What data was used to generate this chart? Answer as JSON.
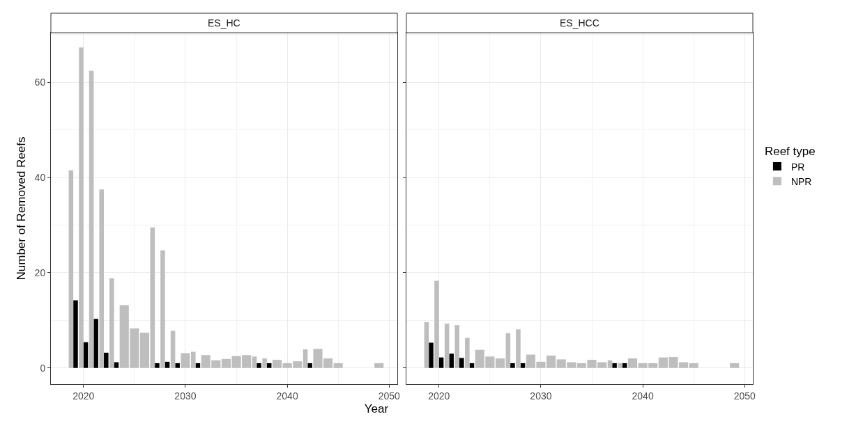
{
  "chart_data": [
    {
      "type": "bar",
      "title": "ES_HC",
      "xlabel": "Year",
      "ylabel": "Number of Removed Reefs",
      "x": [
        2019,
        2020,
        2021,
        2022,
        2023,
        2024,
        2025,
        2026,
        2027,
        2028,
        2029,
        2030,
        2031,
        2032,
        2033,
        2034,
        2035,
        2036,
        2037,
        2038,
        2039,
        2040,
        2041,
        2042,
        2043,
        2044,
        2045,
        2046,
        2047,
        2048,
        2049
      ],
      "series": [
        {
          "color": "#000000",
          "values": [
            14.2,
            5.4,
            10.3,
            3.2,
            1.2,
            null,
            null,
            null,
            1.0,
            1.3,
            1.0,
            null,
            1.0,
            null,
            null,
            null,
            null,
            null,
            1.0,
            1.0,
            null,
            null,
            null,
            1.0,
            null,
            null,
            null,
            null,
            null,
            null,
            null
          ]
        },
        {
          "color": "#bebebe",
          "values": [
            41.5,
            67.3,
            62.4,
            37.5,
            18.8,
            13.2,
            8.3,
            7.4,
            29.5,
            24.7,
            7.8,
            3.1,
            3.4,
            2.7,
            1.6,
            1.9,
            2.5,
            2.7,
            2.4,
            2.0,
            1.7,
            1.0,
            1.4,
            3.9,
            4.0,
            2.0,
            1.0,
            null,
            null,
            null,
            1.0
          ]
        }
      ],
      "xlim": [
        2016.8,
        2050.8
      ],
      "xticks": [
        2020,
        2030,
        2040,
        2050
      ],
      "ylim": [
        -3.4,
        70.4
      ],
      "yticks": [
        0,
        20,
        40,
        60
      ],
      "grid": true,
      "legend": false
    },
    {
      "type": "bar",
      "title": "ES_HCC",
      "legend_title": "Reef type",
      "x": [
        2019,
        2020,
        2021,
        2022,
        2023,
        2024,
        2025,
        2026,
        2027,
        2028,
        2029,
        2030,
        2031,
        2032,
        2033,
        2034,
        2035,
        2036,
        2037,
        2038,
        2039,
        2040,
        2041,
        2042,
        2043,
        2044,
        2045,
        2046,
        2047,
        2048,
        2049
      ],
      "series": [
        {
          "name": "PR",
          "color": "#000000",
          "values": [
            5.3,
            2.2,
            3.0,
            2.1,
            1.0,
            null,
            null,
            null,
            1.0,
            1.0,
            null,
            null,
            null,
            null,
            null,
            null,
            null,
            null,
            1.0,
            1.0,
            null,
            null,
            null,
            null,
            null,
            null,
            null,
            null,
            null,
            null,
            null
          ]
        },
        {
          "name": "NPR",
          "color": "#bebebe",
          "values": [
            9.6,
            18.3,
            9.3,
            9.0,
            6.3,
            3.8,
            2.4,
            2.0,
            7.3,
            8.1,
            2.8,
            1.3,
            2.6,
            1.8,
            1.2,
            1.0,
            1.7,
            1.2,
            1.6,
            1.0,
            2.0,
            1.0,
            1.0,
            2.2,
            2.3,
            1.2,
            1.0,
            null,
            null,
            null,
            1.0
          ]
        }
      ],
      "xlim": [
        2016.8,
        2050.8
      ],
      "xticks": [
        2020,
        2030,
        2040,
        2050
      ],
      "ylim": [
        -3.4,
        70.4
      ],
      "yticks": [
        0,
        20,
        40,
        60
      ],
      "grid": true,
      "legend": "right",
      "tick_labels": "x"
    }
  ]
}
